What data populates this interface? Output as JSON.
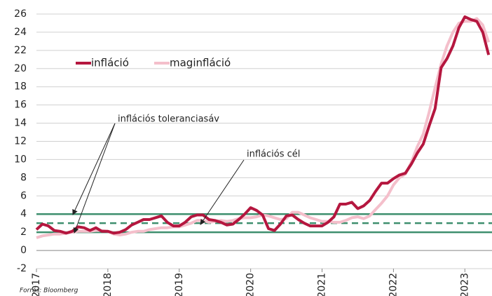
{
  "chart_data": {
    "type": "line",
    "x": [
      2017,
      2017.083,
      2017.167,
      2017.25,
      2017.333,
      2017.417,
      2017.5,
      2017.583,
      2017.667,
      2017.75,
      2017.833,
      2017.917,
      2018,
      2018.083,
      2018.167,
      2018.25,
      2018.333,
      2018.417,
      2018.5,
      2018.583,
      2018.667,
      2018.75,
      2018.833,
      2018.917,
      2019,
      2019.083,
      2019.167,
      2019.25,
      2019.333,
      2019.417,
      2019.5,
      2019.583,
      2019.667,
      2019.75,
      2019.833,
      2019.917,
      2020,
      2020.083,
      2020.167,
      2020.25,
      2020.333,
      2020.417,
      2020.5,
      2020.583,
      2020.667,
      2020.75,
      2020.833,
      2020.917,
      2021,
      2021.083,
      2021.167,
      2021.25,
      2021.333,
      2021.417,
      2021.5,
      2021.583,
      2021.667,
      2021.75,
      2021.833,
      2021.917,
      2022,
      2022.083,
      2022.167,
      2022.25,
      2022.333,
      2022.417,
      2022.5,
      2022.583,
      2022.667,
      2022.75,
      2022.833,
      2022.917,
      2023,
      2023.083,
      2023.167,
      2023.25,
      2023.333
    ],
    "series": [
      {
        "name": "infláció",
        "color": "#b5173f",
        "values": [
          2.3,
          2.9,
          2.7,
          2.2,
          2.1,
          1.9,
          2.1,
          2.6,
          2.5,
          2.2,
          2.5,
          2.1,
          2.1,
          1.9,
          2.0,
          2.3,
          2.8,
          3.1,
          3.4,
          3.4,
          3.6,
          3.8,
          3.1,
          2.7,
          2.7,
          3.1,
          3.7,
          3.9,
          3.9,
          3.4,
          3.3,
          3.1,
          2.8,
          2.9,
          3.4,
          4.0,
          4.7,
          4.4,
          3.9,
          2.4,
          2.2,
          2.9,
          3.8,
          3.9,
          3.4,
          3.0,
          2.7,
          2.7,
          2.7,
          3.1,
          3.7,
          5.1,
          5.1,
          5.3,
          4.6,
          4.9,
          5.5,
          6.5,
          7.4,
          7.4,
          7.9,
          8.3,
          8.5,
          9.5,
          10.7,
          11.7,
          13.7,
          15.6,
          20.1,
          21.1,
          22.5,
          24.5,
          25.7,
          25.4,
          25.2,
          24.0,
          21.5
        ]
      },
      {
        "name": "maginfláció",
        "color": "#f4bfcb",
        "values": [
          1.4,
          1.6,
          1.7,
          1.8,
          1.8,
          1.9,
          2.0,
          2.1,
          2.1,
          2.1,
          2.2,
          2.2,
          2.1,
          1.8,
          1.7,
          1.8,
          2.0,
          2.1,
          2.1,
          2.3,
          2.4,
          2.5,
          2.5,
          2.6,
          2.6,
          2.8,
          3.0,
          3.3,
          3.3,
          3.1,
          3.2,
          3.3,
          3.2,
          3.3,
          3.5,
          3.6,
          3.6,
          3.7,
          3.9,
          3.8,
          3.6,
          3.4,
          3.5,
          4.2,
          4.2,
          3.9,
          3.6,
          3.4,
          3.2,
          3.2,
          3.1,
          3.1,
          3.3,
          3.6,
          3.7,
          3.5,
          3.8,
          4.5,
          5.2,
          6.0,
          7.2,
          8.0,
          8.4,
          9.7,
          11.4,
          12.8,
          15.2,
          17.9,
          20.5,
          22.5,
          24.0,
          25.0,
          25.2,
          25.2,
          25.5,
          24.8,
          22.9
        ]
      }
    ],
    "reference_lines": [
      {
        "value": 4,
        "color": "#3e8f6e",
        "style": "solid"
      },
      {
        "value": 3,
        "color": "#3e8f6e",
        "style": "dashed"
      },
      {
        "value": 2,
        "color": "#3e8f6e",
        "style": "solid"
      }
    ],
    "annotations": [
      "inflációs toleranciasáv",
      "inflációs cél"
    ],
    "xlim": [
      2017,
      2023.38
    ],
    "xticks": [
      2017,
      2018,
      2019,
      2020,
      2021,
      2022,
      2023
    ],
    "ylim": [
      -2,
      26
    ],
    "yticks": [
      -2,
      0,
      2,
      4,
      6,
      8,
      10,
      12,
      14,
      16,
      18,
      20,
      22,
      24,
      26
    ],
    "grid": true,
    "legend": "top-left",
    "source": "Forrás: Bloomberg"
  }
}
